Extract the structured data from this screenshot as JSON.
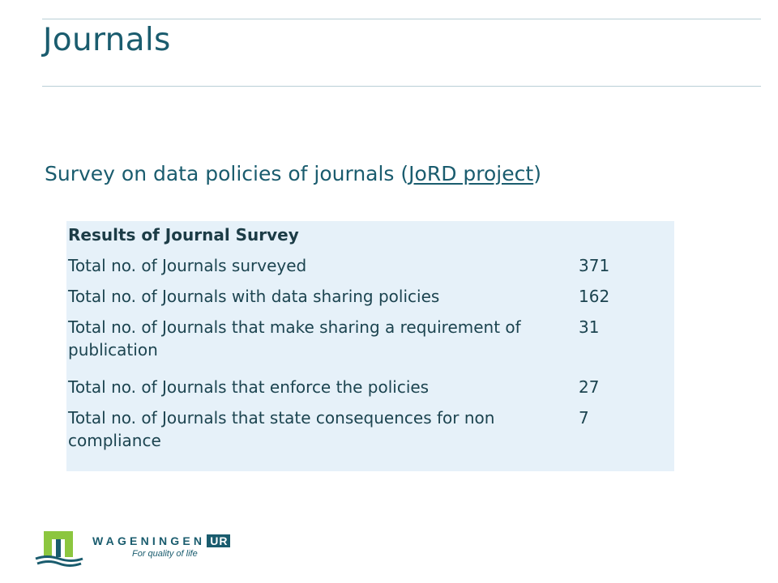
{
  "slide": {
    "title": "Journals",
    "subtitle_prefix": "Survey on data policies of journals (",
    "subtitle_link": "JoRD project",
    "subtitle_suffix": ")"
  },
  "survey_table": {
    "header": "Results of Journal Survey",
    "rows": [
      {
        "label": "Total no. of Journals surveyed",
        "value": "371"
      },
      {
        "label": "Total no. of Journals with data sharing policies",
        "value": "162"
      },
      {
        "label": "Total no. of Journals that make sharing a requirement of publication",
        "value": "31"
      },
      {
        "label": "Total no. of Journals that enforce the policies",
        "value": "27"
      },
      {
        "label": "Total no. of Journals that state consequences for non compliance",
        "value": "7"
      }
    ]
  },
  "logo": {
    "wordmark": "WAGENINGEN",
    "wordmark_suffix": "UR",
    "tagline": "For quality of life",
    "colors": {
      "brand": "#1a5c6e",
      "accent_green": "#8cc63f"
    }
  },
  "theme": {
    "title_color": "#1a5c6e",
    "table_background": "#e6f1f9"
  }
}
